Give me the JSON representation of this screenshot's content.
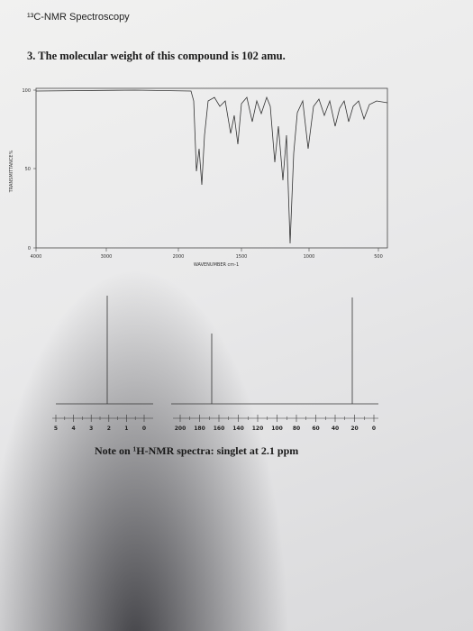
{
  "header": {
    "title": "¹³C-NMR Spectroscopy"
  },
  "question": {
    "text": "3. The molecular weight of this compound is 102 amu."
  },
  "ir_spectrum": {
    "y_axis_label": "TRANSMITTANCE%",
    "y_tick_labels": [
      "100",
      "50",
      "0"
    ],
    "x_tick_labels": [
      "4000",
      "3000",
      "2000",
      "1500",
      "1000",
      "500"
    ],
    "x_axis_label": "WAVENUMBER cm-1"
  },
  "h_nmr": {
    "x_tick_labels": [
      "5",
      "4",
      "3",
      "2",
      "1",
      "0"
    ]
  },
  "c_nmr": {
    "x_tick_labels": [
      "200",
      "180",
      "160",
      "140",
      "120",
      "100",
      "80",
      "60",
      "40",
      "20",
      "0"
    ]
  },
  "note": {
    "text": "Note on ¹H-NMR spectra: singlet at 2.1 ppm"
  }
}
